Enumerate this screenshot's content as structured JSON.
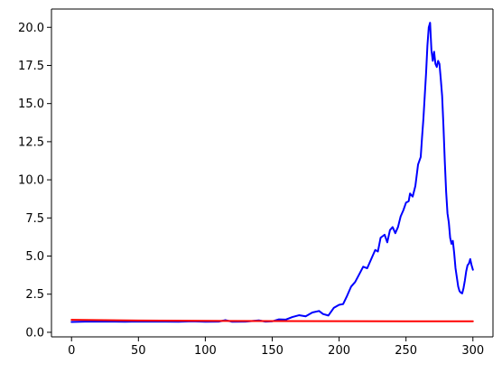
{
  "chart_data": {
    "type": "line",
    "title": "",
    "xlabel": "",
    "ylabel": "",
    "xlim": [
      -15,
      315
    ],
    "ylim": [
      -0.3,
      21.2
    ],
    "xticks": [
      0,
      50,
      100,
      150,
      200,
      250,
      300
    ],
    "xtick_labels": [
      "0",
      "50",
      "100",
      "150",
      "200",
      "250",
      "300"
    ],
    "yticks": [
      0.0,
      2.5,
      5.0,
      7.5,
      10.0,
      12.5,
      15.0,
      17.5,
      20.0
    ],
    "ytick_labels": [
      "0.0",
      "2.5",
      "5.0",
      "7.5",
      "10.0",
      "12.5",
      "15.0",
      "17.5",
      "20.0"
    ],
    "grid": false,
    "legend": "none",
    "series": [
      {
        "color": "#0000ff",
        "points": [
          [
            0,
            0.68
          ],
          [
            10,
            0.7
          ],
          [
            20,
            0.71
          ],
          [
            30,
            0.7
          ],
          [
            40,
            0.69
          ],
          [
            50,
            0.71
          ],
          [
            60,
            0.7
          ],
          [
            70,
            0.7
          ],
          [
            80,
            0.69
          ],
          [
            90,
            0.72
          ],
          [
            100,
            0.69
          ],
          [
            110,
            0.7
          ],
          [
            115,
            0.8
          ],
          [
            120,
            0.69
          ],
          [
            130,
            0.7
          ],
          [
            140,
            0.78
          ],
          [
            145,
            0.7
          ],
          [
            150,
            0.72
          ],
          [
            155,
            0.85
          ],
          [
            160,
            0.83
          ],
          [
            165,
            1.0
          ],
          [
            170,
            1.12
          ],
          [
            175,
            1.05
          ],
          [
            180,
            1.3
          ],
          [
            185,
            1.4
          ],
          [
            188,
            1.2
          ],
          [
            192,
            1.1
          ],
          [
            196,
            1.6
          ],
          [
            200,
            1.8
          ],
          [
            203,
            1.85
          ],
          [
            206,
            2.4
          ],
          [
            209,
            3.0
          ],
          [
            212,
            3.3
          ],
          [
            215,
            3.8
          ],
          [
            218,
            4.3
          ],
          [
            221,
            4.2
          ],
          [
            224,
            4.8
          ],
          [
            227,
            5.4
          ],
          [
            229,
            5.3
          ],
          [
            231,
            6.2
          ],
          [
            234,
            6.4
          ],
          [
            236,
            5.9
          ],
          [
            238,
            6.7
          ],
          [
            240,
            6.9
          ],
          [
            242,
            6.5
          ],
          [
            244,
            6.9
          ],
          [
            246,
            7.6
          ],
          [
            248,
            8.0
          ],
          [
            250,
            8.5
          ],
          [
            252,
            8.6
          ],
          [
            253,
            9.1
          ],
          [
            255,
            8.9
          ],
          [
            257,
            9.6
          ],
          [
            259,
            11.0
          ],
          [
            261,
            11.5
          ],
          [
            262,
            12.8
          ],
          [
            263,
            14.0
          ],
          [
            264,
            15.5
          ],
          [
            265,
            17.0
          ],
          [
            266,
            18.8
          ],
          [
            267,
            20.0
          ],
          [
            268,
            20.3
          ],
          [
            269,
            18.5
          ],
          [
            270,
            17.8
          ],
          [
            271,
            18.4
          ],
          [
            272,
            17.6
          ],
          [
            273,
            17.4
          ],
          [
            274,
            17.8
          ],
          [
            275,
            17.6
          ],
          [
            276,
            16.6
          ],
          [
            277,
            15.5
          ],
          [
            278,
            13.5
          ],
          [
            279,
            11.2
          ],
          [
            280,
            9.2
          ],
          [
            281,
            7.8
          ],
          [
            282,
            7.2
          ],
          [
            283,
            6.2
          ],
          [
            284,
            5.8
          ],
          [
            285,
            6.0
          ],
          [
            286,
            5.2
          ],
          [
            287,
            4.2
          ],
          [
            288,
            3.6
          ],
          [
            289,
            3.0
          ],
          [
            290,
            2.7
          ],
          [
            291,
            2.6
          ],
          [
            292,
            2.55
          ],
          [
            293,
            2.9
          ],
          [
            294,
            3.4
          ],
          [
            295,
            4.0
          ],
          [
            296,
            4.4
          ],
          [
            297,
            4.5
          ],
          [
            298,
            4.8
          ],
          [
            299,
            4.4
          ],
          [
            300,
            4.1
          ]
        ]
      },
      {
        "color": "#ff0000",
        "points": [
          [
            0,
            0.82
          ],
          [
            50,
            0.77
          ],
          [
            100,
            0.75
          ],
          [
            150,
            0.74
          ],
          [
            200,
            0.73
          ],
          [
            250,
            0.72
          ],
          [
            300,
            0.72
          ]
        ]
      }
    ]
  }
}
